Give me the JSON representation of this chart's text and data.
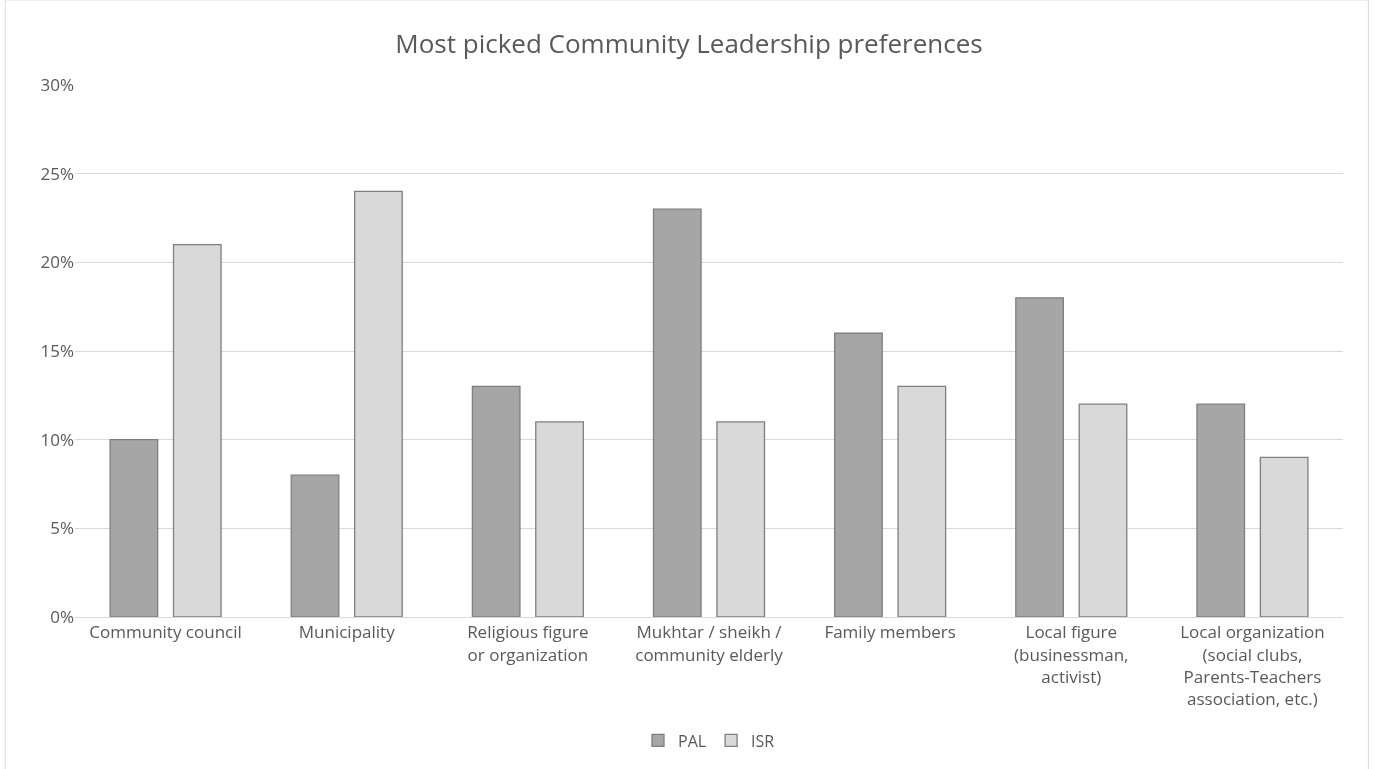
{
  "chart_data": {
    "type": "bar",
    "title": "Most picked Community Leadership preferences",
    "categories": [
      "Community council",
      "Municipality",
      "Religious figure or organization",
      "Mukhtar / sheikh / community elderly",
      "Family members",
      "Local figure (businessman, activist)",
      "Local organization (social clubs, Parents-Teachers association, etc.)"
    ],
    "series": [
      {
        "name": "PAL",
        "color": "#a6a6a6",
        "values": [
          10,
          8,
          13,
          23,
          16,
          18,
          12
        ]
      },
      {
        "name": "ISR",
        "color": "#d9d9d9",
        "values": [
          21,
          24,
          11,
          11,
          13,
          12,
          9
        ]
      }
    ],
    "ylim": [
      0,
      30
    ],
    "yticks": [
      {
        "value": 0,
        "label": "0%"
      },
      {
        "value": 5,
        "label": "5%"
      },
      {
        "value": 10,
        "label": "10%"
      },
      {
        "value": 15,
        "label": "15%"
      },
      {
        "value": 20,
        "label": "20%"
      },
      {
        "value": 25,
        "label": "25%"
      },
      {
        "value": 30,
        "label": "30%"
      }
    ],
    "grid": "y",
    "legend": "bottom"
  }
}
